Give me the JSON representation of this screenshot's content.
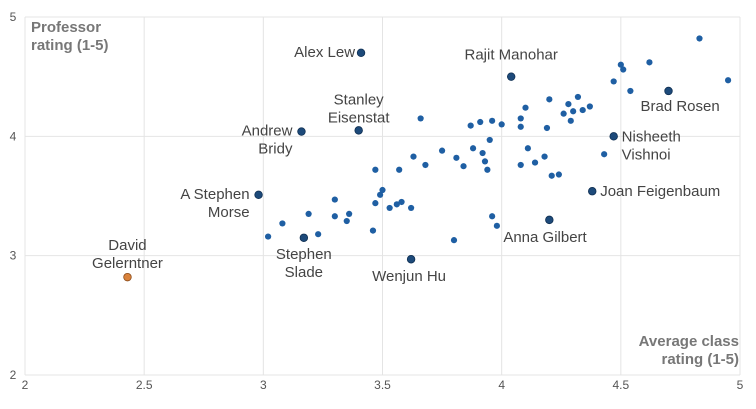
{
  "chart_data": {
    "type": "scatter",
    "title": "",
    "xlabel": "Average class rating (1-5)",
    "ylabel": "Professor rating (1-5)",
    "xlim": [
      2,
      5
    ],
    "ylim": [
      2,
      5
    ],
    "x_ticks": [
      "2",
      "2.5",
      "3",
      "3.5",
      "4",
      "4.5",
      "5"
    ],
    "y_ticks": [
      "2",
      "3",
      "4",
      "5"
    ],
    "grid": true,
    "colors": {
      "point": "#1f5fa3",
      "highlight": "#1d4a7a",
      "outlier": "#d9823b",
      "grid": "#e4e4e4"
    },
    "points": [
      [
        3.02,
        3.16
      ],
      [
        3.08,
        3.27
      ],
      [
        3.19,
        3.35
      ],
      [
        3.23,
        3.18
      ],
      [
        3.3,
        3.33
      ],
      [
        3.3,
        3.47
      ],
      [
        3.35,
        3.29
      ],
      [
        3.36,
        3.35
      ],
      [
        3.46,
        3.21
      ],
      [
        3.47,
        3.44
      ],
      [
        3.47,
        3.72
      ],
      [
        3.49,
        3.51
      ],
      [
        3.5,
        3.55
      ],
      [
        3.53,
        3.4
      ],
      [
        3.56,
        3.43
      ],
      [
        3.57,
        3.72
      ],
      [
        3.58,
        3.45
      ],
      [
        3.62,
        3.4
      ],
      [
        3.63,
        3.83
      ],
      [
        3.66,
        4.15
      ],
      [
        3.68,
        3.76
      ],
      [
        3.75,
        3.88
      ],
      [
        3.8,
        3.13
      ],
      [
        3.81,
        3.82
      ],
      [
        3.84,
        3.75
      ],
      [
        3.87,
        4.09
      ],
      [
        3.88,
        3.9
      ],
      [
        3.91,
        4.12
      ],
      [
        3.92,
        3.86
      ],
      [
        3.93,
        3.79
      ],
      [
        3.94,
        3.72
      ],
      [
        3.95,
        3.97
      ],
      [
        3.96,
        4.13
      ],
      [
        3.96,
        3.33
      ],
      [
        3.98,
        3.25
      ],
      [
        4.0,
        4.1
      ],
      [
        4.08,
        4.15
      ],
      [
        4.08,
        4.08
      ],
      [
        4.08,
        3.76
      ],
      [
        4.1,
        4.24
      ],
      [
        4.11,
        3.9
      ],
      [
        4.14,
        3.78
      ],
      [
        4.18,
        3.83
      ],
      [
        4.19,
        4.07
      ],
      [
        4.2,
        4.31
      ],
      [
        4.21,
        3.67
      ],
      [
        4.24,
        3.68
      ],
      [
        4.26,
        4.19
      ],
      [
        4.28,
        4.27
      ],
      [
        4.29,
        4.13
      ],
      [
        4.3,
        4.21
      ],
      [
        4.32,
        4.33
      ],
      [
        4.34,
        4.22
      ],
      [
        4.37,
        4.25
      ],
      [
        4.43,
        3.85
      ],
      [
        4.47,
        4.46
      ],
      [
        4.5,
        4.6
      ],
      [
        4.51,
        4.56
      ],
      [
        4.54,
        4.38
      ],
      [
        4.62,
        4.62
      ],
      [
        4.83,
        4.82
      ],
      [
        4.95,
        4.47
      ]
    ],
    "labeled_points": [
      {
        "name": "Alex Lew",
        "x": 3.41,
        "y": 4.7
      },
      {
        "name": "Rajit Manohar",
        "x": 4.04,
        "y": 4.5
      },
      {
        "name": "Stanley Eisenstat",
        "x": 3.4,
        "y": 4.05
      },
      {
        "name": "Andrew Bridy",
        "x": 3.16,
        "y": 4.04
      },
      {
        "name": "Brad Rosen",
        "x": 4.7,
        "y": 4.38
      },
      {
        "name": "Nisheeth Vishnoi",
        "x": 4.47,
        "y": 4.0
      },
      {
        "name": "A Stephen Morse",
        "x": 2.98,
        "y": 3.51
      },
      {
        "name": "Joan Feigenbaum",
        "x": 4.38,
        "y": 3.54
      },
      {
        "name": "Anna Gilbert",
        "x": 4.2,
        "y": 3.3
      },
      {
        "name": "Stephen Slade",
        "x": 3.17,
        "y": 3.15
      },
      {
        "name": "Wenjun Hu",
        "x": 3.62,
        "y": 2.97
      },
      {
        "name": "David Gelerntner",
        "x": 2.43,
        "y": 2.82
      }
    ]
  },
  "axis_titles": {
    "y_line1": "Professor",
    "y_line2": "rating (1-5)",
    "x_line1": "Average class",
    "x_line2": "rating (1-5)"
  },
  "annotations": [
    {
      "lines": [
        "Alex Lew"
      ]
    },
    {
      "lines": [
        "Rajit Manohar"
      ]
    },
    {
      "lines": [
        "Stanley",
        "Eisenstat"
      ]
    },
    {
      "lines": [
        "Andrew",
        "Bridy"
      ]
    },
    {
      "lines": [
        "Brad Rosen"
      ]
    },
    {
      "lines": [
        "Nisheeth",
        "Vishnoi"
      ]
    },
    {
      "lines": [
        "A Stephen",
        "Morse"
      ]
    },
    {
      "lines": [
        "Joan Feigenbaum"
      ]
    },
    {
      "lines": [
        "Anna Gilbert"
      ]
    },
    {
      "lines": [
        "Stephen",
        "Slade"
      ]
    },
    {
      "lines": [
        "Wenjun Hu"
      ]
    },
    {
      "lines": [
        "David",
        "Gelerntner"
      ]
    }
  ]
}
